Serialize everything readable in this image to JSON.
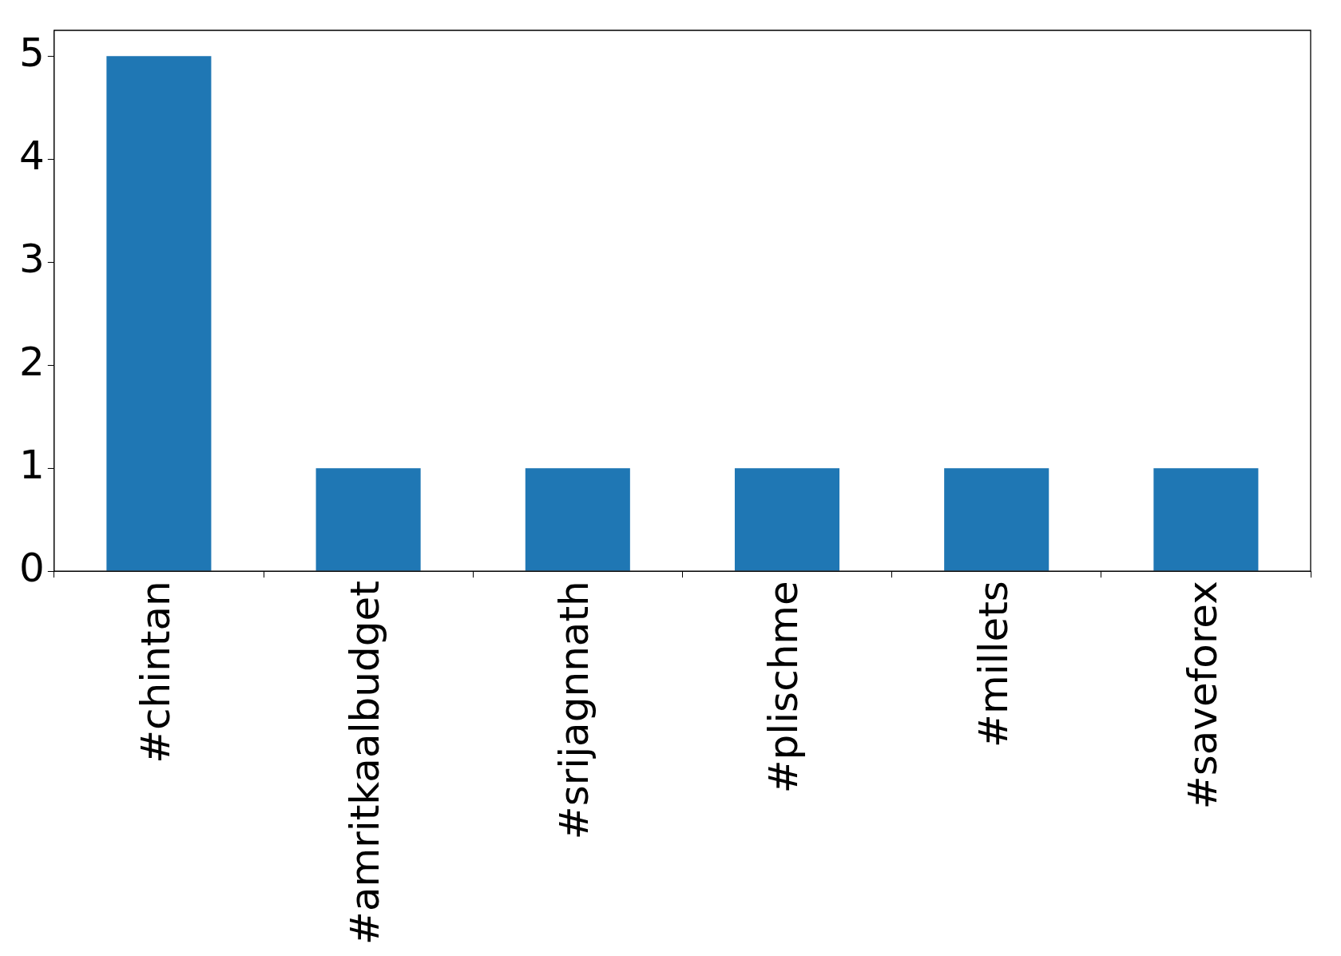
{
  "chart_data": {
    "type": "bar",
    "categories": [
      "#chintan",
      "#amritkaalbudget",
      "#srijagnnath",
      "#plischme",
      "#millets",
      "#saveforex"
    ],
    "values": [
      5,
      1,
      1,
      1,
      1,
      1
    ],
    "color": "#1f77b4",
    "ylim": [
      0,
      5.25
    ],
    "yticks": [
      0,
      1,
      2,
      3,
      4,
      5
    ],
    "grid": false,
    "legend": false
  }
}
